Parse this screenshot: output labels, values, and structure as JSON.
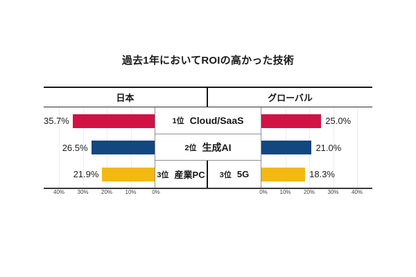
{
  "title": "過去1年においてROIの高かった技術",
  "header": {
    "left": "日本",
    "right": "グローバル"
  },
  "chart_data": {
    "type": "bar",
    "variant": "bidirectional-tornado",
    "title": "過去1年においてROIの高かった技術",
    "column_headers": [
      "日本",
      "グローバル"
    ],
    "unit": "%",
    "xlim_percent": [
      0,
      40
    ],
    "gridlines": true,
    "axis_ticks_left": [
      "40%",
      "30%",
      "20%",
      "10%",
      "0%"
    ],
    "axis_ticks_right": [
      "0%",
      "10%",
      "20%",
      "30%",
      "40%"
    ],
    "rows": [
      {
        "rank": "1位",
        "label": "Cloud/SaaS",
        "japan_value": 35.7,
        "global_value": 25.0,
        "japan_display": "35.7%",
        "global_display": "25.0%",
        "color": "#d01245"
      },
      {
        "rank": "2位",
        "label": "生成AI",
        "japan_value": 26.5,
        "global_value": 21.0,
        "japan_display": "26.5%",
        "global_display": "21.0%",
        "color": "#12477f"
      },
      {
        "rank_japan": "3位",
        "label_japan": "産業PC",
        "rank_global": "3位",
        "label_global": "5G",
        "japan_value": 21.9,
        "global_value": 18.3,
        "japan_display": "21.9%",
        "global_display": "18.3%",
        "color": "#f3b811"
      }
    ],
    "colors": {
      "rank1": "#d01245",
      "rank2": "#12477f",
      "rank3": "#f3b811"
    }
  }
}
